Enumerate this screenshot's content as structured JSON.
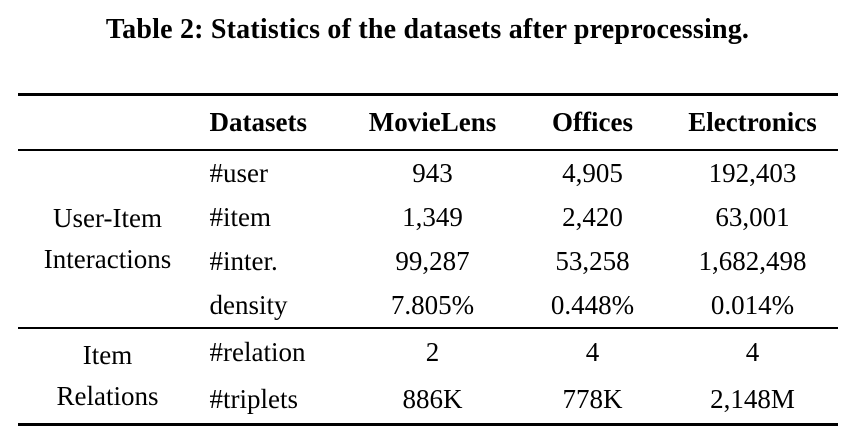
{
  "title": "Table 2: Statistics of the datasets after preprocessing.",
  "table": {
    "header": {
      "datasets": "Datasets",
      "movielens": "MovieLens",
      "offices": "Offices",
      "electronics": "Electronics"
    },
    "groups": [
      {
        "label": "User-Item Interactions",
        "rows": [
          {
            "stat": "#user",
            "movielens": "943",
            "offices": "4,905",
            "electronics": "192,403"
          },
          {
            "stat": "#item",
            "movielens": "1,349",
            "offices": "2,420",
            "electronics": "63,001"
          },
          {
            "stat": "#inter.",
            "movielens": "99,287",
            "offices": "53,258",
            "electronics": "1,682,498"
          },
          {
            "stat": "density",
            "movielens": "7.805%",
            "offices": "0.448%",
            "electronics": "0.014%"
          }
        ]
      },
      {
        "label": "Item Relations",
        "rows": [
          {
            "stat": "#relation",
            "movielens": "2",
            "offices": "4",
            "electronics": "4"
          },
          {
            "stat": "#triplets",
            "movielens": "886K",
            "offices": "778K",
            "electronics": "2,148M"
          }
        ]
      }
    ]
  },
  "colors": {
    "text": "#000000",
    "background": "#ffffff",
    "rule": "#000000"
  }
}
